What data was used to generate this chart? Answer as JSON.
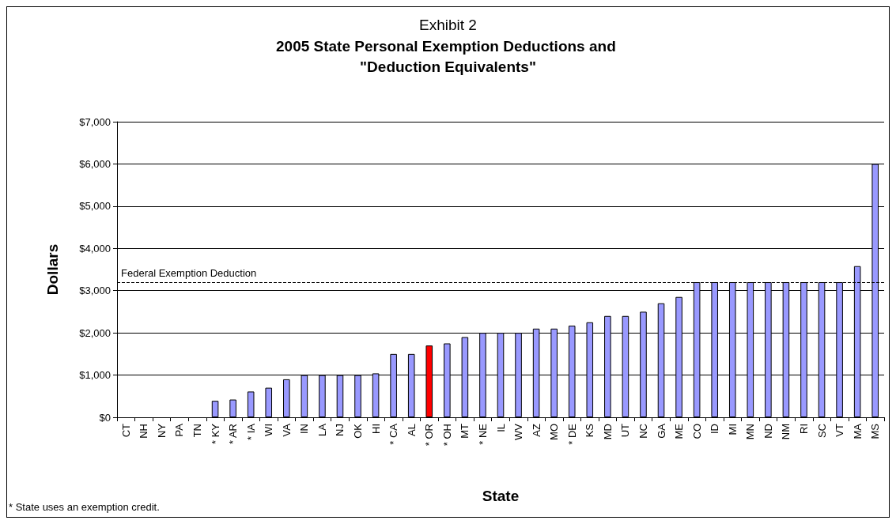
{
  "chart_data": {
    "type": "bar",
    "title": "Exhibit 2",
    "subtitle": "2005 State Personal Exemption Deductions and \"Deduction Equivalents\"",
    "xlabel": "State",
    "ylabel": "Dollars",
    "categories": [
      "CT",
      "NH",
      "NY",
      "PA",
      "TN",
      "* KY",
      "* AR",
      "* IA",
      "WI",
      "VA",
      "IN",
      "LA",
      "NJ",
      "OK",
      "HI",
      "* CA",
      "AL",
      "* OR",
      "* OH",
      "MT",
      "* NE",
      "IL",
      "WV",
      "AZ",
      "MO",
      "* DE",
      "KS",
      "MD",
      "UT",
      "NC",
      "GA",
      "ME",
      "CO",
      "ID",
      "MI",
      "MN",
      "ND",
      "NM",
      "RI",
      "SC",
      "VT",
      "MA",
      "MS"
    ],
    "values": [
      0,
      0,
      0,
      0,
      0,
      390,
      420,
      610,
      700,
      900,
      1000,
      1000,
      1000,
      1000,
      1040,
      1500,
      1500,
      1700,
      1750,
      1900,
      2000,
      2000,
      2000,
      2100,
      2100,
      2170,
      2250,
      2400,
      2400,
      2500,
      2700,
      2850,
      3200,
      3200,
      3200,
      3200,
      3200,
      3200,
      3200,
      3200,
      3200,
      3580,
      6000
    ],
    "colors": [
      "#9999ff",
      "#9999ff",
      "#9999ff",
      "#9999ff",
      "#9999ff",
      "#9999ff",
      "#9999ff",
      "#9999ff",
      "#9999ff",
      "#9999ff",
      "#9999ff",
      "#9999ff",
      "#9999ff",
      "#9999ff",
      "#9999ff",
      "#9999ff",
      "#9999ff",
      "#ff0000",
      "#9999ff",
      "#9999ff",
      "#9999ff",
      "#9999ff",
      "#9999ff",
      "#9999ff",
      "#9999ff",
      "#9999ff",
      "#9999ff",
      "#9999ff",
      "#9999ff",
      "#9999ff",
      "#9999ff",
      "#9999ff",
      "#9999ff",
      "#9999ff",
      "#9999ff",
      "#9999ff",
      "#9999ff",
      "#9999ff",
      "#9999ff",
      "#9999ff",
      "#9999ff",
      "#9999ff",
      "#9999ff"
    ],
    "ylim": [
      0,
      7000
    ],
    "yticks": [
      {
        "value": 0,
        "label": "$0"
      },
      {
        "value": 1000,
        "label": "$1,000"
      },
      {
        "value": 2000,
        "label": "$2,000"
      },
      {
        "value": 3000,
        "label": "$3,000"
      },
      {
        "value": 4000,
        "label": "$4,000"
      },
      {
        "value": 5000,
        "label": "$5,000"
      },
      {
        "value": 6000,
        "label": "$6,000"
      },
      {
        "value": 7000,
        "label": "$7,000"
      }
    ],
    "ref_lines": [
      {
        "axis": "y",
        "value": 3200,
        "label": "Federal Exemption Deduction",
        "line_style": "dashed",
        "color": "#000000"
      }
    ],
    "annotations": [
      "* State uses an exemption credit."
    ],
    "grid": "y"
  }
}
